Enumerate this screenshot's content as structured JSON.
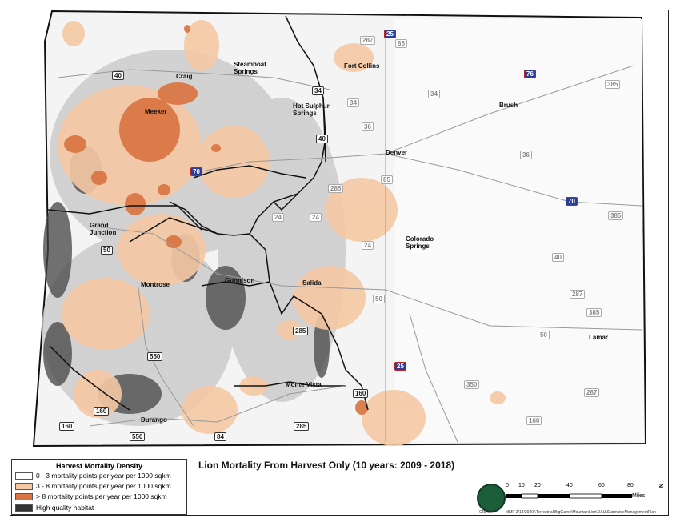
{
  "title": "Lion Mortality From Harvest Only (10 years: 2009 - 2018)",
  "legend": {
    "title": "Harvest Mortality Density",
    "items": [
      {
        "label": "0 - 3 mortality points per year per 1000 sqkm",
        "color": "#ffffff"
      },
      {
        "label": "3 - 8 mortality points per year per 1000 sqkm",
        "color": "#f5c9a4"
      },
      {
        "label": "> 8 mortality points per year per 1000 sqkm",
        "color": "#d9733f"
      },
      {
        "label": "High quality habitat",
        "color": "#333333"
      }
    ]
  },
  "cities": [
    {
      "name": "Craig"
    },
    {
      "name": "Steamboat\nSprings"
    },
    {
      "name": "Meeker"
    },
    {
      "name": "Hot Sulphur\nSprings"
    },
    {
      "name": "Fort Collins"
    },
    {
      "name": "Brush"
    },
    {
      "name": "Denver"
    },
    {
      "name": "Grand\nJunction"
    },
    {
      "name": "Colorado\nSprings"
    },
    {
      "name": "Montrose"
    },
    {
      "name": "Gunnison"
    },
    {
      "name": "Salida"
    },
    {
      "name": "Lamar"
    },
    {
      "name": "Monte Vista"
    },
    {
      "name": "Durango"
    }
  ],
  "highways": [
    {
      "label": "40"
    },
    {
      "label": "287"
    },
    {
      "label": "25"
    },
    {
      "label": "85"
    },
    {
      "label": "76"
    },
    {
      "label": "34"
    },
    {
      "label": "34"
    },
    {
      "label": "385"
    },
    {
      "label": "34"
    },
    {
      "label": "40"
    },
    {
      "label": "36"
    },
    {
      "label": "36"
    },
    {
      "label": "70"
    },
    {
      "label": "285"
    },
    {
      "label": "85"
    },
    {
      "label": "70"
    },
    {
      "label": "385"
    },
    {
      "label": "24"
    },
    {
      "label": "24"
    },
    {
      "label": "24"
    },
    {
      "label": "50"
    },
    {
      "label": "40"
    },
    {
      "label": "287"
    },
    {
      "label": "50"
    },
    {
      "label": "50"
    },
    {
      "label": "385"
    },
    {
      "label": "285"
    },
    {
      "label": "550"
    },
    {
      "label": "25"
    },
    {
      "label": "350"
    },
    {
      "label": "287"
    },
    {
      "label": "160"
    },
    {
      "label": "160"
    },
    {
      "label": "160"
    },
    {
      "label": "285"
    },
    {
      "label": "550"
    },
    {
      "label": "84"
    },
    {
      "label": "160"
    }
  ],
  "scale": {
    "ticks": [
      "0",
      "10",
      "20",
      "40",
      "60",
      "80"
    ],
    "units": "Miles"
  },
  "north": "N",
  "logo_caption": "GIS Unit",
  "credit": "MMF 2/14/2020 \\Terrestrial\\BigGame\\MountainLion\\DAU\\StatewideManagementPlan"
}
